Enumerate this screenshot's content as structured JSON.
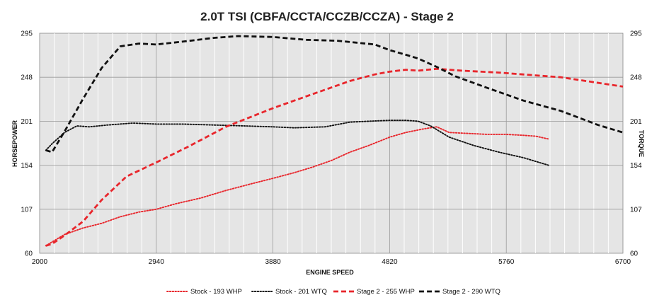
{
  "chart_data": {
    "type": "line",
    "title": "2.0T TSI (CBFA/CCTA/CCZB/CCZA) - Stage 2",
    "xlabel": "ENGINE SPEED",
    "ylabel_left": "HORSEPOWER",
    "ylabel_right": "TORQUE",
    "xlim": [
      2000,
      6700
    ],
    "ylim": [
      60,
      295
    ],
    "x_ticks": [
      "2000",
      "2940",
      "3880",
      "4820",
      "5760",
      "6700"
    ],
    "y_ticks": [
      "60",
      "107",
      "154",
      "201",
      "248",
      "295"
    ],
    "grid": true,
    "legend_position": "bottom",
    "series": [
      {
        "name": "Stock - 193 WHP",
        "color": "#e8262c",
        "style": "dotted",
        "x": [
          2050,
          2100,
          2200,
          2350,
          2500,
          2650,
          2800,
          2940,
          3100,
          3300,
          3500,
          3700,
          3880,
          4050,
          4200,
          4350,
          4500,
          4650,
          4820,
          4950,
          5100,
          5200,
          5300,
          5450,
          5600,
          5750,
          5900,
          6000,
          6100
        ],
        "values": [
          68,
          72,
          80,
          87,
          92,
          99,
          104,
          107,
          113,
          119,
          127,
          134,
          140,
          146,
          152,
          159,
          168,
          175,
          184,
          189,
          193,
          195,
          189,
          188,
          187,
          187,
          186,
          185,
          182
        ]
      },
      {
        "name": "Stock - 201 WTQ",
        "color": "#111111",
        "style": "dotted",
        "x": [
          2050,
          2100,
          2200,
          2300,
          2400,
          2550,
          2750,
          2940,
          3150,
          3400,
          3650,
          3880,
          4050,
          4300,
          4500,
          4650,
          4820,
          4950,
          5050,
          5150,
          5300,
          5500,
          5700,
          5900,
          6100
        ],
        "values": [
          170,
          177,
          189,
          196,
          195,
          197,
          199,
          198,
          198,
          197,
          196,
          195,
          194,
          195,
          200,
          201,
          202,
          202,
          201,
          196,
          184,
          175,
          168,
          162,
          154
        ]
      },
      {
        "name": "Stage 2 - 255 WHP",
        "color": "#e8262c",
        "style": "dashed",
        "x": [
          2050,
          2100,
          2200,
          2350,
          2500,
          2700,
          2940,
          3200,
          3500,
          3880,
          4200,
          4500,
          4700,
          4820,
          4950,
          5050,
          5200,
          5400,
          5700,
          6000,
          6200,
          6450,
          6700
        ],
        "values": [
          68,
          70,
          79,
          94,
          117,
          142,
          157,
          174,
          195,
          215,
          230,
          244,
          251,
          254,
          256,
          255,
          257,
          255,
          253,
          250,
          248,
          243,
          238
        ]
      },
      {
        "name": "Stage 2 - 290 WTQ",
        "color": "#111111",
        "style": "dashed",
        "x": [
          2050,
          2100,
          2200,
          2350,
          2500,
          2650,
          2800,
          2940,
          3150,
          3400,
          3600,
          3880,
          4150,
          4400,
          4700,
          4820,
          4950,
          5050,
          5200,
          5350,
          5600,
          5900,
          6200,
          6500,
          6700
        ],
        "values": [
          170,
          168,
          190,
          225,
          258,
          281,
          284,
          283,
          286,
          290,
          292,
          291,
          288,
          287,
          283,
          277,
          272,
          268,
          259,
          249,
          237,
          223,
          212,
          197,
          189
        ]
      }
    ]
  }
}
